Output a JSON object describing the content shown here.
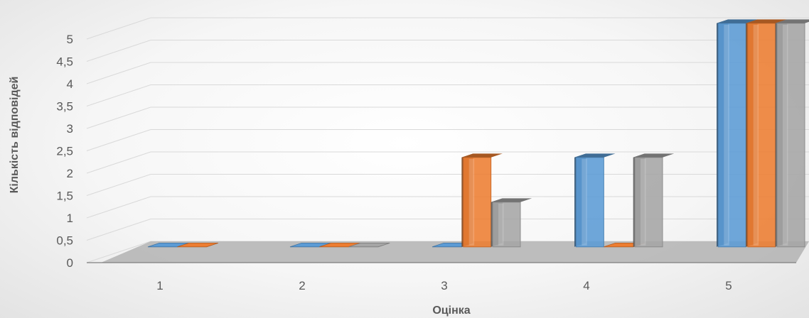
{
  "chart_data": {
    "type": "bar",
    "xlabel": "Оцінка",
    "ylabel": "Кількість відповідей",
    "categories": [
      "1",
      "2",
      "3",
      "4",
      "5"
    ],
    "ylim": [
      0,
      5
    ],
    "yticks": [
      "0",
      "0,5",
      "1",
      "1,5",
      "2",
      "2,5",
      "3",
      "3,5",
      "4",
      "4,5",
      "5"
    ],
    "grid": true,
    "legend": "none",
    "style": "3d-clustered-column",
    "series": [
      {
        "color": "#5B9BD5",
        "values": [
          0,
          0,
          0,
          2,
          5
        ]
      },
      {
        "color": "#ED7D31",
        "values": [
          0,
          0,
          2,
          0,
          5
        ]
      },
      {
        "color": "#A5A5A5",
        "values": [
          null,
          0,
          1,
          2,
          5
        ]
      }
    ]
  }
}
